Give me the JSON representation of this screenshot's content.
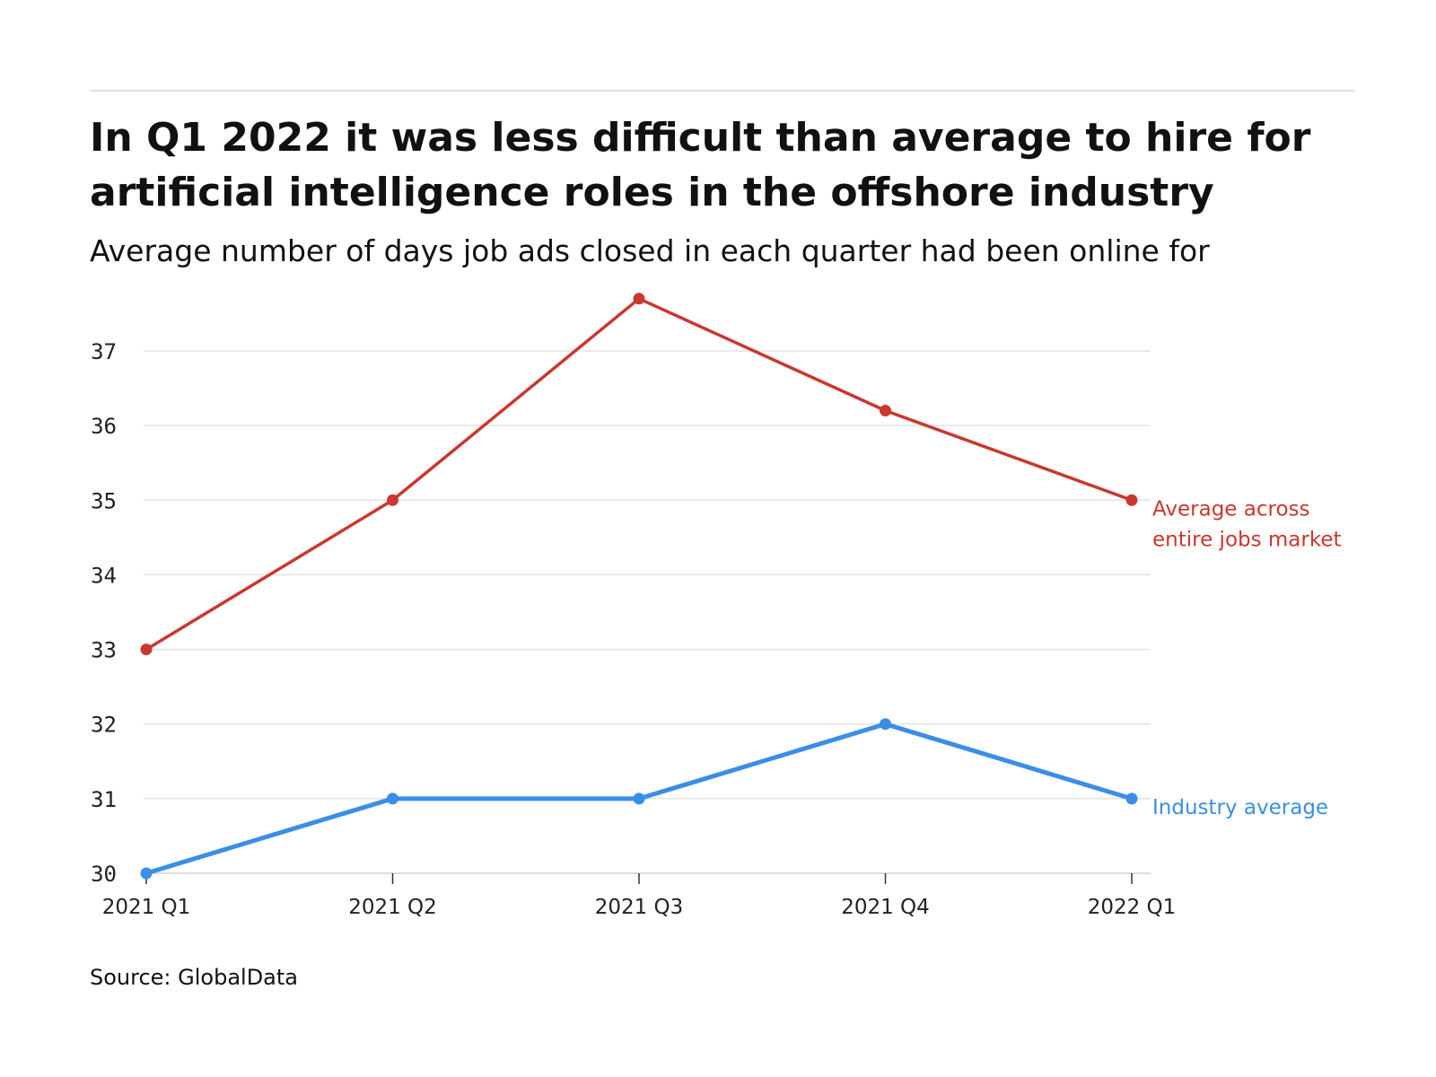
{
  "header": {
    "title": "In Q1 2022 it was less difficult than average to hire for artificial intelligence roles in the offshore industry",
    "subtitle": "Average number of days job ads closed in each quarter had been online for"
  },
  "footer": {
    "source": "Source: GlobalData"
  },
  "chart_data": {
    "type": "line",
    "title": "In Q1 2022 it was less difficult than average to hire for artificial intelligence roles in the offshore industry",
    "subtitle": "Average number of days job ads closed in each quarter had been online for",
    "categories": [
      "2021 Q1",
      "2021 Q2",
      "2021 Q3",
      "2021 Q4",
      "2022 Q1"
    ],
    "series": [
      {
        "name": "Average across entire jobs market",
        "label_lines": [
          "Average across",
          "entire jobs market"
        ],
        "color": "#c9382f",
        "values": [
          33,
          35,
          37.7,
          36.2,
          35
        ]
      },
      {
        "name": "Industry average",
        "label_lines": [
          "Industry average"
        ],
        "color": "#3a8ee6",
        "values": [
          30,
          31,
          31,
          32,
          31
        ]
      }
    ],
    "y_ticks": [
      30,
      31,
      32,
      33,
      34,
      35,
      36,
      37
    ],
    "ylim": [
      30,
      37.7
    ],
    "grid": true,
    "legend": "direct labels at line ends (right)",
    "xlabel": "",
    "ylabel": ""
  }
}
